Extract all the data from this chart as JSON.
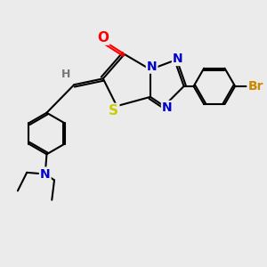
{
  "bg_color": "#ebebeb",
  "atom_colors": {
    "O": "#ff0000",
    "N": "#0000cc",
    "S": "#cccc00",
    "Br": "#cc8800",
    "C": "#000000",
    "H": "#777777"
  },
  "bond_lw": 1.5,
  "font_size": 10,
  "xlim": [
    -3.0,
    5.5
  ],
  "ylim": [
    -5.5,
    2.5
  ]
}
